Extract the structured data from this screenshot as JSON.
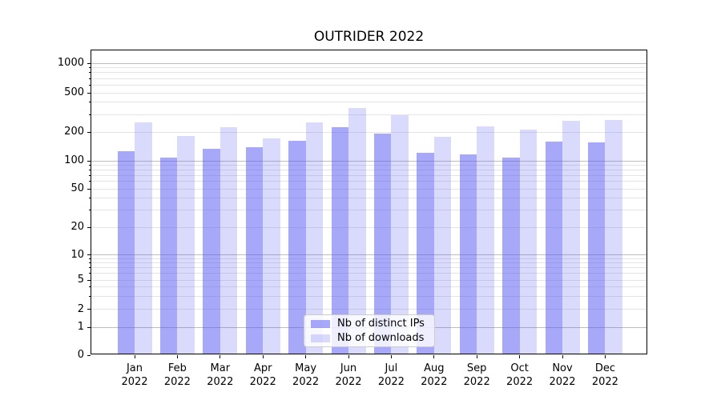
{
  "chart_data": {
    "type": "bar",
    "title": "OUTRIDER 2022",
    "categories": [
      "Jan",
      "Feb",
      "Mar",
      "Apr",
      "May",
      "Jun",
      "Jul",
      "Aug",
      "Sep",
      "Oct",
      "Nov",
      "Dec"
    ],
    "year_label": "2022",
    "series": [
      {
        "name": "Nb of distinct IPs",
        "color": "rgba(88,88,243,0.52)",
        "values": [
          127,
          108,
          133,
          138,
          161,
          222,
          191,
          121,
          116,
          108,
          159,
          155
        ]
      },
      {
        "name": "Nb of downloads",
        "color": "rgba(88,88,243,0.22)",
        "values": [
          250,
          183,
          222,
          172,
          248,
          350,
          295,
          177,
          226,
          212,
          259,
          263
        ]
      }
    ],
    "yscale": "symlog",
    "yticks": [
      0,
      1,
      2,
      5,
      10,
      20,
      50,
      100,
      200,
      500,
      1000
    ],
    "ylim": [
      0,
      1400
    ],
    "grid": true,
    "legend_position": "lower center"
  }
}
